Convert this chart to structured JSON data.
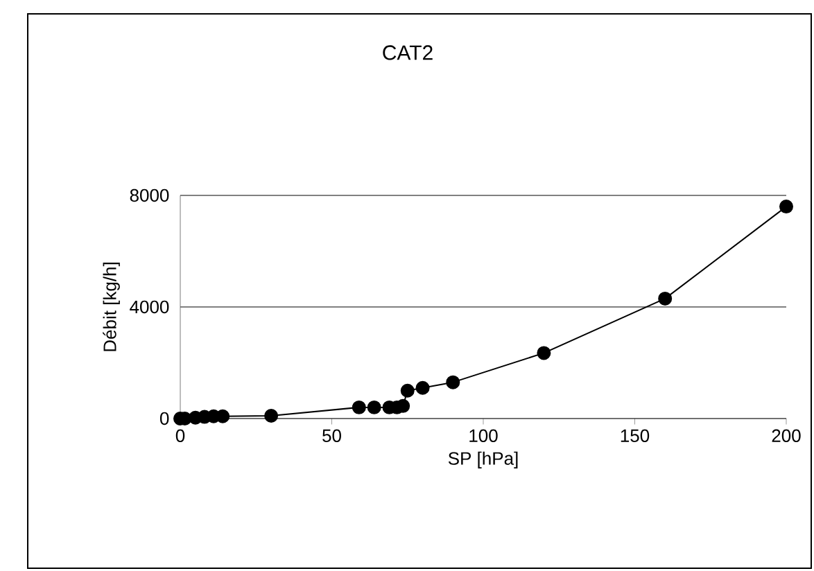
{
  "chart_data": {
    "type": "line",
    "title": "CAT2",
    "xlabel": "SP [hPa]",
    "ylabel": "Débit [kg/h]",
    "xlim": [
      0,
      200
    ],
    "ylim": [
      0,
      8000
    ],
    "xticks": [
      0,
      50,
      100,
      150,
      200
    ],
    "yticks": [
      0,
      4000,
      8000
    ],
    "grid": "y",
    "marker": "circle",
    "line_style": "solid",
    "series": [
      {
        "color": "#000000",
        "x": [
          0,
          1.5,
          5,
          8,
          11,
          14,
          30,
          59,
          64,
          69,
          71.5,
          73.5,
          75,
          80,
          90,
          120,
          160,
          200
        ],
        "values": [
          0,
          0,
          30,
          60,
          80,
          80,
          100,
          400,
          400,
          400,
          400,
          450,
          1000,
          1100,
          1300,
          2350,
          4300,
          7600
        ]
      }
    ]
  }
}
